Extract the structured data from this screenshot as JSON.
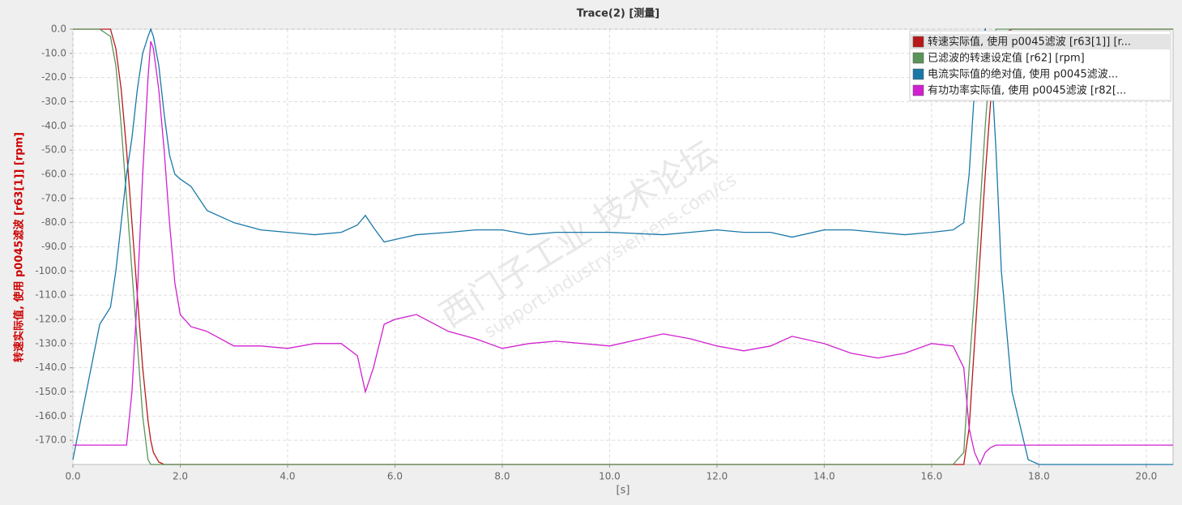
{
  "chart_data": {
    "type": "line",
    "title": "Trace(2) [测量]",
    "y_label": "转速实际值, 使用 p0045滤波 [r63[1]] [rpm]",
    "x_label": "[s]",
    "watermark": [
      "西门子工业 技术论坛",
      "support.industry.siemens.com/cs"
    ],
    "grid": true,
    "legend": "upper right",
    "xlim": [
      0,
      20.5
    ],
    "ylim": [
      -180,
      0
    ],
    "xticks": [
      {
        "value": 0,
        "label": "0.0"
      },
      {
        "value": 2,
        "label": "2.0"
      },
      {
        "value": 4,
        "label": "4.0"
      },
      {
        "value": 6,
        "label": "6.0"
      },
      {
        "value": 8,
        "label": "8.0"
      },
      {
        "value": 10,
        "label": "10.0"
      },
      {
        "value": 12,
        "label": "12.0"
      },
      {
        "value": 14,
        "label": "14.0"
      },
      {
        "value": 16,
        "label": "16.0"
      },
      {
        "value": 18,
        "label": "18.0"
      },
      {
        "value": 20,
        "label": "20.0"
      }
    ],
    "yticks": [
      {
        "value": 0,
        "label": "0.0"
      },
      {
        "value": -10,
        "label": "-10.0"
      },
      {
        "value": -20,
        "label": "-20.0"
      },
      {
        "value": -30,
        "label": "-30.0"
      },
      {
        "value": -40,
        "label": "-40.0"
      },
      {
        "value": -50,
        "label": "-50.0"
      },
      {
        "value": -60,
        "label": "-60.0"
      },
      {
        "value": -70,
        "label": "-70.0"
      },
      {
        "value": -80,
        "label": "-80.0"
      },
      {
        "value": -90,
        "label": "-90.0"
      },
      {
        "value": -100,
        "label": "-100.0"
      },
      {
        "value": -110,
        "label": "-110.0"
      },
      {
        "value": -120,
        "label": "-120.0"
      },
      {
        "value": -130,
        "label": "-130.0"
      },
      {
        "value": -140,
        "label": "-140.0"
      },
      {
        "value": -150,
        "label": "-150.0"
      },
      {
        "value": -160,
        "label": "-160.0"
      },
      {
        "value": -170,
        "label": "-170.0"
      }
    ],
    "x": [
      0,
      0.5,
      0.7,
      0.8,
      0.9,
      1.0,
      1.1,
      1.2,
      1.3,
      1.4,
      1.45,
      1.5,
      1.6,
      1.7,
      1.8,
      1.9,
      2.0,
      2.2,
      2.5,
      3.0,
      3.5,
      4.0,
      4.5,
      5.0,
      5.3,
      5.45,
      5.6,
      5.8,
      6.0,
      6.4,
      7.0,
      7.5,
      8.0,
      8.5,
      9.0,
      10.0,
      11.0,
      11.5,
      12.0,
      12.5,
      13.0,
      13.4,
      14.0,
      14.5,
      15.0,
      15.5,
      16.0,
      16.4,
      16.6,
      16.7,
      16.8,
      16.9,
      17.0,
      17.1,
      17.2,
      17.3,
      17.5,
      17.8,
      18.0,
      19.0,
      20.5
    ],
    "series": [
      {
        "name": "转速实际值, 使用 p0045滤波 [r63[1]] [r...",
        "color": "#b81818",
        "values": [
          0,
          0,
          0,
          -8,
          -25,
          -50,
          -80,
          -110,
          -140,
          -162,
          -170,
          -175,
          -179,
          -180,
          -180,
          -180,
          -180,
          -180,
          -180,
          -180,
          -180,
          -180,
          -180,
          -180,
          -180,
          -180,
          -180,
          -180,
          -180,
          -180,
          -180,
          -180,
          -180,
          -180,
          -180,
          -180,
          -180,
          -180,
          -180,
          -180,
          -180,
          -180,
          -180,
          -180,
          -180,
          -180,
          -180,
          -180,
          -180,
          -165,
          -130,
          -95,
          -60,
          -30,
          -10,
          -2,
          0,
          0,
          0,
          0,
          0
        ]
      },
      {
        "name": "已滤波的转速设定值 [r62] [rpm]",
        "color": "#5a945a",
        "values": [
          0,
          0,
          -3,
          -15,
          -40,
          -70,
          -100,
          -130,
          -160,
          -178,
          -180,
          -180,
          -180,
          -180,
          -180,
          -180,
          -180,
          -180,
          -180,
          -180,
          -180,
          -180,
          -180,
          -180,
          -180,
          -180,
          -180,
          -180,
          -180,
          -180,
          -180,
          -180,
          -180,
          -180,
          -180,
          -180,
          -180,
          -180,
          -180,
          -180,
          -180,
          -180,
          -180,
          -180,
          -180,
          -180,
          -180,
          -180,
          -175,
          -140,
          -110,
          -75,
          -40,
          -10,
          0,
          0,
          0,
          0,
          0,
          0,
          0
        ]
      },
      {
        "name": "电流实际值的绝对值, 使用 p0045滤波...",
        "color": "#1a78a8",
        "values": [
          -178,
          -122,
          -115,
          -100,
          -80,
          -60,
          -45,
          -25,
          -10,
          -3,
          0,
          -3,
          -15,
          -35,
          -52,
          -60,
          -62,
          -65,
          -75,
          -80,
          -83,
          -84,
          -85,
          -84,
          -81,
          -77,
          -82,
          -88,
          -87,
          -85,
          -84,
          -83,
          -83,
          -85,
          -84,
          -84,
          -85,
          -84,
          -83,
          -84,
          -84,
          -86,
          -83,
          -83,
          -84,
          -85,
          -84,
          -83,
          -80,
          -60,
          -25,
          -5,
          0,
          -10,
          -50,
          -100,
          -150,
          -178,
          -180,
          -180,
          -180
        ]
      },
      {
        "name": "有功功率实际值, 使用 p0045滤波 [r82[...",
        "color": "#d020d0",
        "values": [
          -172,
          -172,
          -172,
          -172,
          -172,
          -172,
          -150,
          -110,
          -60,
          -20,
          -5,
          -8,
          -25,
          -50,
          -80,
          -105,
          -118,
          -123,
          -125,
          -131,
          -131,
          -132,
          -130,
          -130,
          -135,
          -150,
          -140,
          -122,
          -120,
          -118,
          -125,
          -128,
          -132,
          -130,
          -129,
          -131,
          -126,
          -128,
          -131,
          -133,
          -131,
          -127,
          -130,
          -134,
          -136,
          -134,
          -130,
          -131,
          -140,
          -165,
          -175,
          -180,
          -175,
          -173,
          -172,
          -172,
          -172,
          -172,
          -172,
          -172,
          -172
        ]
      }
    ]
  }
}
